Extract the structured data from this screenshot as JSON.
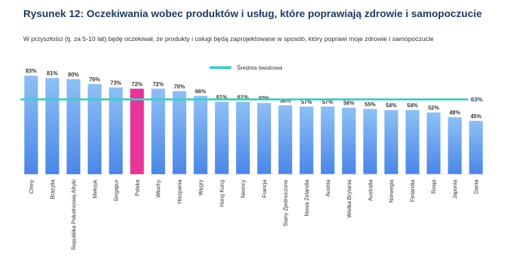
{
  "chart_data": {
    "type": "bar",
    "title": "Rysunek 12: Oczekiwania wobec produktów i usług, które poprawiają zdrowie i samopoczucie",
    "subtitle": "W przyszłości (tj. za 5-10 lat) będę oczekiwał, że produkty i usługi będą zaprojektowane w sposób, który poprawi moje zdrowie i samopoczucie",
    "categories": [
      "Chiny",
      "Brazylia",
      "Republika Południowej Afryki",
      "Meksyk",
      "Singapur",
      "Polska",
      "Włochy",
      "Hiszpania",
      "Węgry",
      "Hong Kong",
      "Niemcy",
      "Francja",
      "Stany Zjednoczone",
      "Nowa Zelandia",
      "Austria",
      "Wielka Brytania",
      "Australia",
      "Norwegia",
      "Finlandia",
      "Rosja",
      "Japonia",
      "Dania"
    ],
    "values": [
      83,
      81,
      80,
      76,
      73,
      72,
      72,
      70,
      66,
      61,
      61,
      60,
      58,
      57,
      57,
      56,
      55,
      54,
      54,
      52,
      48,
      45
    ],
    "value_labels": [
      "83%",
      "81%",
      "80%",
      "76%",
      "73%",
      "72%",
      "72%",
      "70%",
      "66%",
      "61%",
      "61%",
      "60%",
      "58%",
      "57%",
      "57%",
      "56%",
      "55%",
      "54%",
      "54%",
      "52%",
      "48%",
      "45%"
    ],
    "highlight_category": "Polska",
    "average": {
      "label": "Średnia światowa",
      "value": 63,
      "value_label": "63%"
    },
    "ylim": [
      0,
      88
    ],
    "xlabel": "",
    "ylabel": "",
    "colors": {
      "bar_top": "#8ec0f5",
      "bar_bottom": "#4a86e8",
      "highlight": "#e8359a",
      "average_line": "#3fcfbf",
      "title": "#1f3a5f"
    }
  }
}
